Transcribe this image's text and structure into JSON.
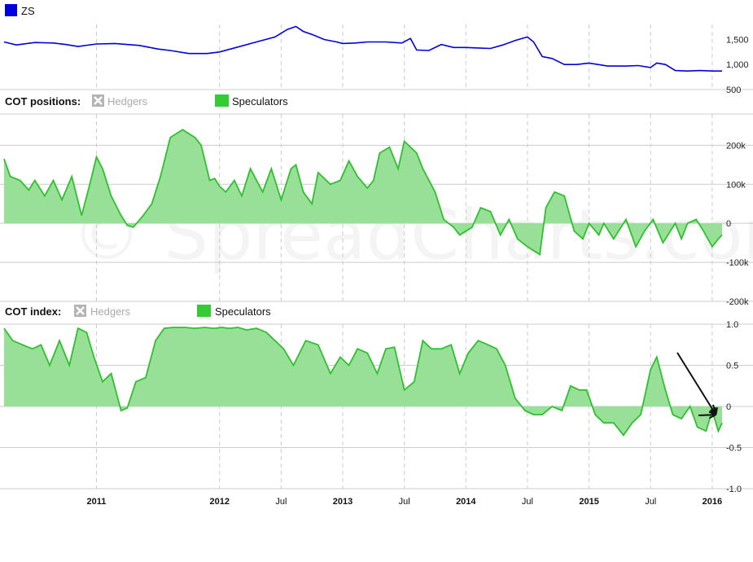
{
  "colors": {
    "price_line": "#0000dd",
    "spec_line": "#2fc02f",
    "spec_fill": "#98e098",
    "legend_speculators": "#33cc33",
    "legend_hedgers": "#b4b4b4",
    "grid": "#cccccc",
    "arrow": "#111111"
  },
  "watermark": "© SpreadCharts.com",
  "chart_data": [
    {
      "type": "line",
      "legend": [
        {
          "name": "ZS",
          "icon": "blue-square-icon"
        }
      ],
      "y_ticks": [
        500,
        1000,
        1500
      ],
      "y_tick_labels": [
        "500",
        "1,000",
        "1,500"
      ],
      "ylim": [
        500,
        1800
      ],
      "series": [
        {
          "name": "ZS",
          "x": [
            2010.25,
            2010.35,
            2010.5,
            2010.65,
            2010.75,
            2010.85,
            2011.0,
            2011.15,
            2011.35,
            2011.5,
            2011.6,
            2011.75,
            2011.9,
            2012.0,
            2012.15,
            2012.3,
            2012.45,
            2012.55,
            2012.62,
            2012.68,
            2012.75,
            2012.85,
            2012.95,
            2013.0,
            2013.1,
            2013.2,
            2013.35,
            2013.48,
            2013.55,
            2013.6,
            2013.7,
            2013.8,
            2013.9,
            2014.0,
            2014.1,
            2014.2,
            2014.3,
            2014.4,
            2014.5,
            2014.55,
            2014.62,
            2014.7,
            2014.8,
            2014.9,
            2015.0,
            2015.15,
            2015.3,
            2015.4,
            2015.5,
            2015.55,
            2015.62,
            2015.7,
            2015.8,
            2015.9,
            2016.0,
            2016.08
          ],
          "values": [
            1450,
            1390,
            1440,
            1430,
            1400,
            1360,
            1410,
            1420,
            1380,
            1310,
            1280,
            1220,
            1220,
            1250,
            1350,
            1450,
            1550,
            1700,
            1760,
            1660,
            1600,
            1500,
            1450,
            1420,
            1430,
            1450,
            1450,
            1430,
            1520,
            1290,
            1280,
            1400,
            1340,
            1340,
            1330,
            1320,
            1390,
            1480,
            1550,
            1450,
            1160,
            1120,
            1000,
            1000,
            1030,
            970,
            970,
            980,
            940,
            1030,
            1000,
            880,
            870,
            880,
            870,
            870
          ]
        }
      ]
    },
    {
      "type": "area",
      "title": "COT positions:",
      "legend": [
        {
          "name": "Hedgers",
          "state": "disabled",
          "icon": "unchecked-x-icon"
        },
        {
          "name": "Speculators",
          "state": "enabled",
          "icon": "green-square-icon"
        }
      ],
      "y_ticks": [
        -200000,
        -100000,
        0,
        100000,
        200000
      ],
      "y_tick_labels": [
        "-200k",
        "-100k",
        "0",
        "100k",
        "200k"
      ],
      "ylim": [
        -200000,
        280000
      ],
      "series": [
        {
          "name": "Speculators",
          "x": [
            2010.25,
            2010.3,
            2010.38,
            2010.45,
            2010.5,
            2010.58,
            2010.65,
            2010.72,
            2010.8,
            2010.88,
            2010.95,
            2011.0,
            2011.05,
            2011.12,
            2011.2,
            2011.25,
            2011.3,
            2011.38,
            2011.45,
            2011.52,
            2011.6,
            2011.7,
            2011.75,
            2011.8,
            2011.85,
            2011.92,
            2011.96,
            2012.0,
            2012.05,
            2012.12,
            2012.18,
            2012.25,
            2012.35,
            2012.42,
            2012.5,
            2012.58,
            2012.62,
            2012.68,
            2012.75,
            2012.8,
            2012.9,
            2012.98,
            2013.05,
            2013.12,
            2013.2,
            2013.25,
            2013.3,
            2013.38,
            2013.45,
            2013.5,
            2013.6,
            2013.65,
            2013.75,
            2013.82,
            2013.9,
            2013.95,
            2014.0,
            2014.05,
            2014.12,
            2014.2,
            2014.28,
            2014.35,
            2014.42,
            2014.5,
            2014.6,
            2014.65,
            2014.72,
            2014.8,
            2014.88,
            2014.95,
            2015.0,
            2015.08,
            2015.12,
            2015.2,
            2015.3,
            2015.38,
            2015.45,
            2015.52,
            2015.6,
            2015.7,
            2015.75,
            2015.8,
            2015.87,
            2015.93,
            2016.0,
            2016.05,
            2016.08
          ],
          "values": [
            165000,
            120000,
            110000,
            85000,
            110000,
            70000,
            110000,
            60000,
            120000,
            20000,
            105000,
            170000,
            140000,
            70000,
            20000,
            -5000,
            -10000,
            20000,
            50000,
            120000,
            220000,
            240000,
            230000,
            220000,
            200000,
            110000,
            115000,
            95000,
            80000,
            110000,
            70000,
            140000,
            80000,
            140000,
            60000,
            140000,
            150000,
            80000,
            50000,
            130000,
            100000,
            110000,
            160000,
            120000,
            90000,
            110000,
            180000,
            195000,
            140000,
            210000,
            180000,
            140000,
            80000,
            10000,
            -10000,
            -30000,
            -20000,
            -10000,
            40000,
            30000,
            -30000,
            10000,
            -40000,
            -60000,
            -80000,
            40000,
            80000,
            70000,
            -20000,
            -40000,
            0,
            -30000,
            0,
            -40000,
            10000,
            -60000,
            -20000,
            10000,
            -50000,
            0,
            -40000,
            0,
            10000,
            -20000,
            -60000,
            -40000,
            -30000
          ]
        }
      ]
    },
    {
      "type": "area",
      "title": "COT index:",
      "legend": [
        {
          "name": "Hedgers",
          "state": "disabled",
          "icon": "unchecked-x-icon"
        },
        {
          "name": "Speculators",
          "state": "enabled",
          "icon": "green-square-icon"
        }
      ],
      "y_ticks": [
        -1.0,
        -0.5,
        0,
        0.5,
        1.0
      ],
      "y_tick_labels": [
        "-1.0",
        "-0.5",
        "0",
        "0.5",
        "1.0"
      ],
      "ylim": [
        -1.0,
        1.0
      ],
      "annotations": [
        {
          "type": "arrows",
          "target": {
            "x": 2016.03,
            "y": -0.1
          }
        }
      ],
      "x_ticks": [
        {
          "x": 2011.0,
          "label": "2011",
          "bold": true
        },
        {
          "x": 2012.0,
          "label": "2012",
          "bold": true
        },
        {
          "x": 2012.5,
          "label": "Jul",
          "bold": false
        },
        {
          "x": 2013.0,
          "label": "2013",
          "bold": true
        },
        {
          "x": 2013.5,
          "label": "Jul",
          "bold": false
        },
        {
          "x": 2014.0,
          "label": "2014",
          "bold": true
        },
        {
          "x": 2014.5,
          "label": "Jul",
          "bold": false
        },
        {
          "x": 2015.0,
          "label": "2015",
          "bold": true
        },
        {
          "x": 2015.5,
          "label": "Jul",
          "bold": false
        },
        {
          "x": 2016.0,
          "label": "2016",
          "bold": true
        }
      ],
      "series": [
        {
          "name": "Speculators",
          "x": [
            2010.25,
            2010.32,
            2010.4,
            2010.48,
            2010.55,
            2010.62,
            2010.7,
            2010.78,
            2010.85,
            2010.92,
            2010.98,
            2011.05,
            2011.12,
            2011.2,
            2011.25,
            2011.32,
            2011.4,
            2011.48,
            2011.55,
            2011.62,
            2011.72,
            2011.8,
            2011.88,
            2011.95,
            2012.02,
            2012.08,
            2012.15,
            2012.22,
            2012.3,
            2012.38,
            2012.45,
            2012.52,
            2012.6,
            2012.7,
            2012.8,
            2012.9,
            2012.98,
            2013.05,
            2013.12,
            2013.2,
            2013.28,
            2013.35,
            2013.42,
            2013.5,
            2013.58,
            2013.65,
            2013.72,
            2013.8,
            2013.88,
            2013.95,
            2014.02,
            2014.1,
            2014.18,
            2014.25,
            2014.32,
            2014.4,
            2014.48,
            2014.55,
            2014.62,
            2014.7,
            2014.78,
            2014.85,
            2014.92,
            2014.98,
            2015.05,
            2015.12,
            2015.2,
            2015.28,
            2015.35,
            2015.42,
            2015.5,
            2015.55,
            2015.62,
            2015.68,
            2015.75,
            2015.82,
            2015.88,
            2015.95,
            2016.0,
            2016.05,
            2016.08
          ],
          "values": [
            0.95,
            0.8,
            0.75,
            0.7,
            0.75,
            0.5,
            0.8,
            0.5,
            0.95,
            0.9,
            0.6,
            0.3,
            0.4,
            -0.05,
            -0.02,
            0.3,
            0.35,
            0.8,
            0.95,
            0.96,
            0.96,
            0.95,
            0.96,
            0.95,
            0.96,
            0.95,
            0.96,
            0.93,
            0.95,
            0.9,
            0.8,
            0.7,
            0.5,
            0.8,
            0.75,
            0.4,
            0.6,
            0.5,
            0.7,
            0.65,
            0.4,
            0.7,
            0.72,
            0.2,
            0.3,
            0.8,
            0.7,
            0.7,
            0.75,
            0.4,
            0.65,
            0.8,
            0.75,
            0.7,
            0.5,
            0.1,
            -0.05,
            -0.1,
            -0.1,
            0.0,
            -0.05,
            0.25,
            0.2,
            0.2,
            -0.1,
            -0.2,
            -0.2,
            -0.35,
            -0.2,
            -0.1,
            0.45,
            0.6,
            0.2,
            -0.1,
            -0.15,
            0.0,
            -0.25,
            -0.3,
            -0.05,
            -0.3,
            -0.2
          ]
        }
      ]
    }
  ]
}
